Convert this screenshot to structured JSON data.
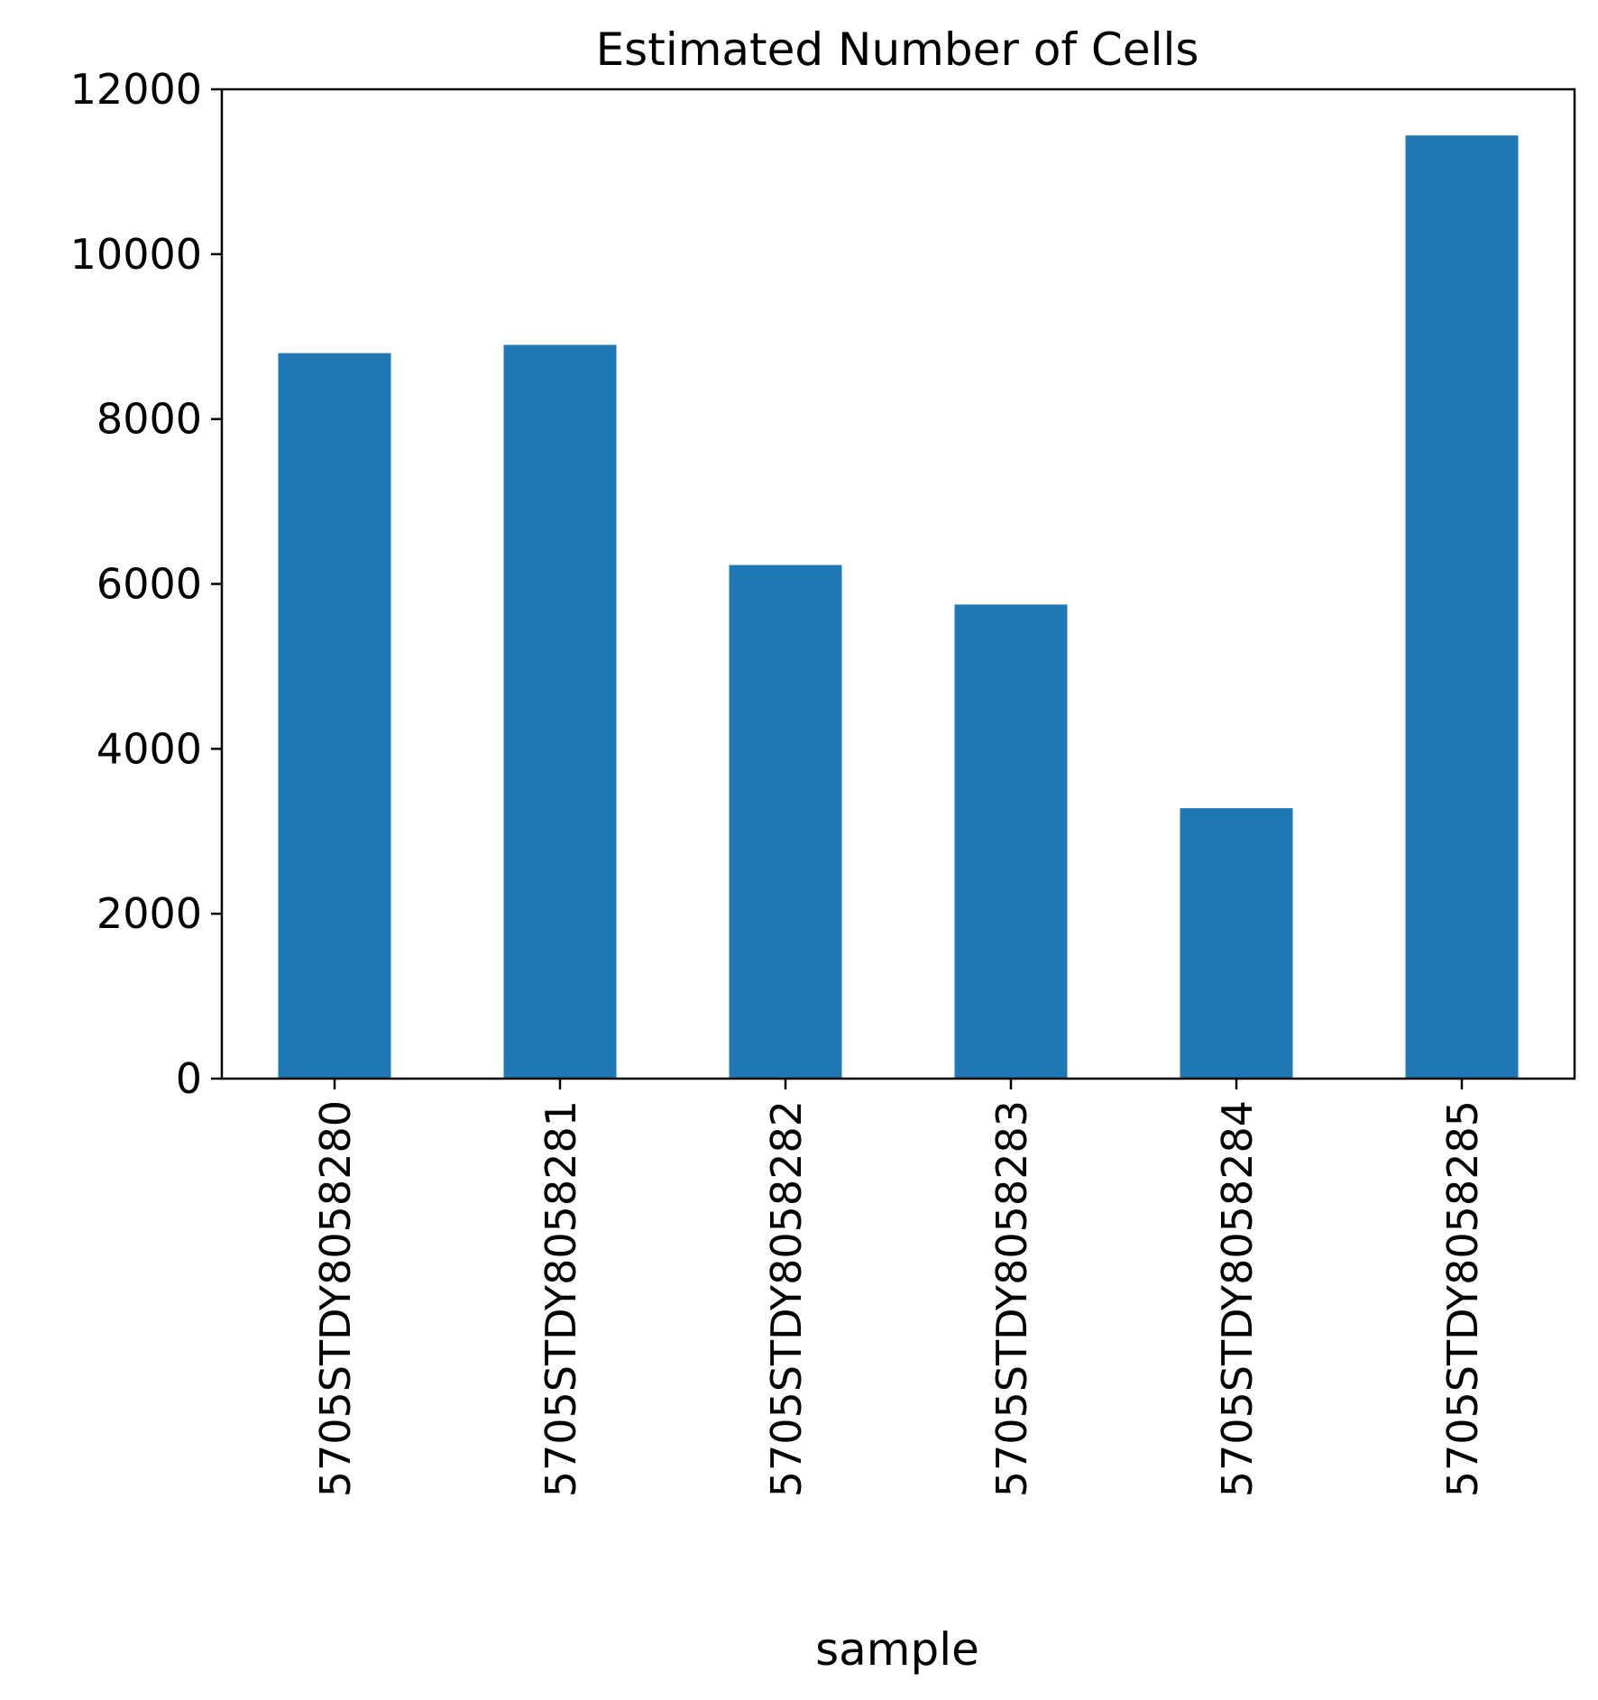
{
  "chart_data": {
    "type": "bar",
    "title": "Estimated Number of Cells",
    "xlabel": "sample",
    "ylabel": "",
    "categories": [
      "5705STDY8058280",
      "5705STDY8058281",
      "5705STDY8058282",
      "5705STDY8058283",
      "5705STDY8058284",
      "5705STDY8058285"
    ],
    "values": [
      8800,
      8900,
      6230,
      5750,
      3280,
      11440
    ],
    "ylim": [
      0,
      12000
    ],
    "yticks": [
      0,
      2000,
      4000,
      6000,
      8000,
      10000,
      12000
    ],
    "bar_color": "#1f77b4",
    "grid": false,
    "legend": "none"
  }
}
